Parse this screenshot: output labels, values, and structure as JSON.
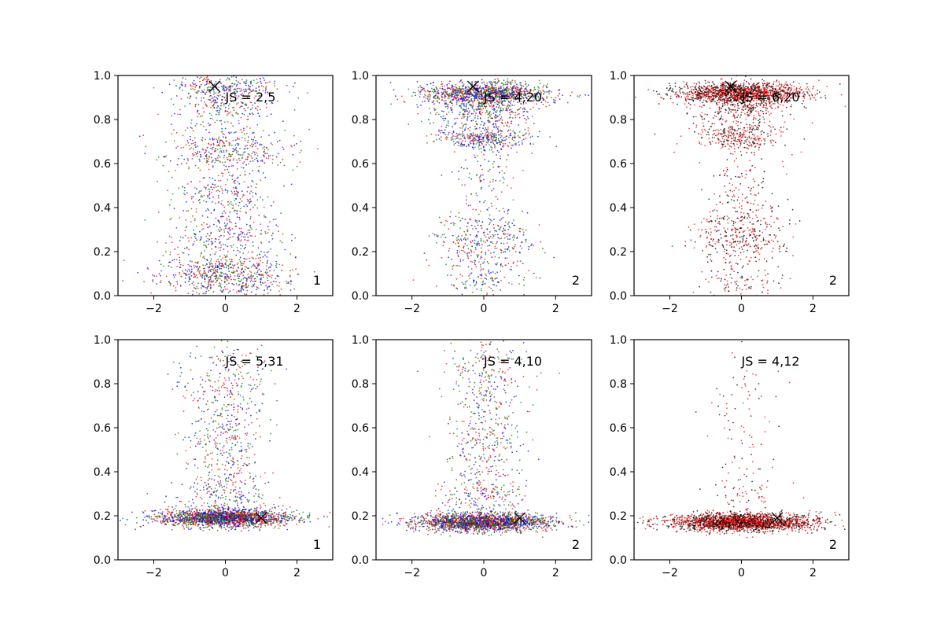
{
  "chart_data": [
    {
      "type": "scatter",
      "xlim": [
        -3,
        3
      ],
      "ylim": [
        0,
        1
      ],
      "xticks": [
        "−2",
        "0",
        "2"
      ],
      "yticks": [
        "0.0",
        "0.2",
        "0.4",
        "0.6",
        "0.8",
        "1.0"
      ],
      "annotation": "JS = 2,5",
      "corner_label": "1",
      "marker": {
        "x": -0.3,
        "y": 0.95
      },
      "colors": [
        "#0000ff",
        "#ff0000",
        "#008000"
      ],
      "density": [
        {
          "y": 0.09,
          "sx": 0.9,
          "sy": 0.05,
          "n": 650
        },
        {
          "y": 0.28,
          "sx": 0.75,
          "sy": 0.06,
          "n": 280
        },
        {
          "y": 0.46,
          "sx": 0.7,
          "sy": 0.05,
          "n": 200
        },
        {
          "y": 0.66,
          "sx": 0.85,
          "sy": 0.05,
          "n": 380
        },
        {
          "y": 0.85,
          "sx": 0.75,
          "sy": 0.05,
          "n": 220
        },
        {
          "y": 0.95,
          "sx": 0.75,
          "sy": 0.03,
          "n": 260
        }
      ]
    },
    {
      "type": "scatter",
      "xlim": [
        -3,
        3
      ],
      "ylim": [
        0,
        1
      ],
      "xticks": [
        "−2",
        "0",
        "2"
      ],
      "yticks": [
        "0.0",
        "0.2",
        "0.4",
        "0.6",
        "0.8",
        "1.0"
      ],
      "annotation": "JS = 4,20",
      "corner_label": "2",
      "marker": {
        "x": -0.3,
        "y": 0.95
      },
      "colors": [
        "#0000ff",
        "#ff0000",
        "#008000"
      ],
      "density": [
        {
          "y": 0.92,
          "sx": 0.9,
          "sy": 0.025,
          "n": 1100
        },
        {
          "y": 0.84,
          "sx": 0.7,
          "sy": 0.04,
          "n": 350
        },
        {
          "y": 0.72,
          "sx": 0.7,
          "sy": 0.03,
          "n": 380
        },
        {
          "y": 0.55,
          "sx": 0.5,
          "sy": 0.08,
          "n": 90
        },
        {
          "y": 0.25,
          "sx": 0.7,
          "sy": 0.08,
          "n": 380
        },
        {
          "y": 0.06,
          "sx": 0.6,
          "sy": 0.04,
          "n": 100
        }
      ]
    },
    {
      "type": "scatter",
      "xlim": [
        -3,
        3
      ],
      "ylim": [
        0,
        1
      ],
      "xticks": [
        "−2",
        "0",
        "2"
      ],
      "yticks": [
        "0.0",
        "0.2",
        "0.4",
        "0.6",
        "0.8",
        "1.0"
      ],
      "annotation": "JS = 6,20",
      "corner_label": "2",
      "marker": {
        "x": -0.3,
        "y": 0.95
      },
      "colors": [
        "#ff0000",
        "#000000"
      ],
      "density": [
        {
          "y": 0.92,
          "sx": 0.9,
          "sy": 0.025,
          "n": 1400
        },
        {
          "y": 0.84,
          "sx": 0.7,
          "sy": 0.04,
          "n": 250
        },
        {
          "y": 0.72,
          "sx": 0.65,
          "sy": 0.03,
          "n": 280
        },
        {
          "y": 0.52,
          "sx": 0.45,
          "sy": 0.08,
          "n": 90
        },
        {
          "y": 0.27,
          "sx": 0.7,
          "sy": 0.08,
          "n": 380
        },
        {
          "y": 0.06,
          "sx": 0.6,
          "sy": 0.04,
          "n": 90
        }
      ]
    },
    {
      "type": "scatter",
      "xlim": [
        -3,
        3
      ],
      "ylim": [
        0,
        1
      ],
      "xticks": [
        "−2",
        "0",
        "2"
      ],
      "yticks": [
        "0.0",
        "0.2",
        "0.4",
        "0.6",
        "0.8",
        "1.0"
      ],
      "annotation": "JS = 5,31",
      "corner_label": "1",
      "marker": {
        "x": 1.0,
        "y": 0.19
      },
      "colors": [
        "#0000ff",
        "#ff0000",
        "#008000"
      ],
      "density": [
        {
          "y": 0.19,
          "sx": 0.95,
          "sy": 0.02,
          "n": 1900
        },
        {
          "y": 0.3,
          "sx": 0.6,
          "sy": 0.05,
          "n": 200
        },
        {
          "y": 0.55,
          "sx": 0.55,
          "sy": 0.12,
          "n": 300
        },
        {
          "y": 0.82,
          "sx": 0.6,
          "sy": 0.1,
          "n": 220
        }
      ]
    },
    {
      "type": "scatter",
      "xlim": [
        -3,
        3
      ],
      "ylim": [
        0,
        1
      ],
      "xticks": [
        "−2",
        "0",
        "2"
      ],
      "yticks": [
        "0.0",
        "0.2",
        "0.4",
        "0.6",
        "0.8",
        "1.0"
      ],
      "annotation": "JS = 4,10",
      "corner_label": "2",
      "marker": {
        "x": 1.0,
        "y": 0.19
      },
      "colors": [
        "#0000ff",
        "#ff0000",
        "#008000"
      ],
      "density": [
        {
          "y": 0.17,
          "sx": 0.95,
          "sy": 0.02,
          "n": 2000
        },
        {
          "y": 0.3,
          "sx": 0.6,
          "sy": 0.05,
          "n": 180
        },
        {
          "y": 0.55,
          "sx": 0.55,
          "sy": 0.12,
          "n": 300
        },
        {
          "y": 0.85,
          "sx": 0.6,
          "sy": 0.1,
          "n": 200
        }
      ]
    },
    {
      "type": "scatter",
      "xlim": [
        -3,
        3
      ],
      "ylim": [
        0,
        1
      ],
      "xticks": [
        "−2",
        "0",
        "2"
      ],
      "yticks": [
        "0.0",
        "0.2",
        "0.4",
        "0.6",
        "0.8",
        "1.0"
      ],
      "annotation": "JS = 4,12",
      "corner_label": "2",
      "marker": {
        "x": 1.0,
        "y": 0.19
      },
      "colors": [
        "#ff0000",
        "#000000"
      ],
      "density": [
        {
          "y": 0.17,
          "sx": 1.0,
          "sy": 0.02,
          "n": 2100
        },
        {
          "y": 0.3,
          "sx": 0.6,
          "sy": 0.04,
          "n": 50
        },
        {
          "y": 0.6,
          "sx": 0.45,
          "sy": 0.15,
          "n": 80
        }
      ]
    }
  ]
}
